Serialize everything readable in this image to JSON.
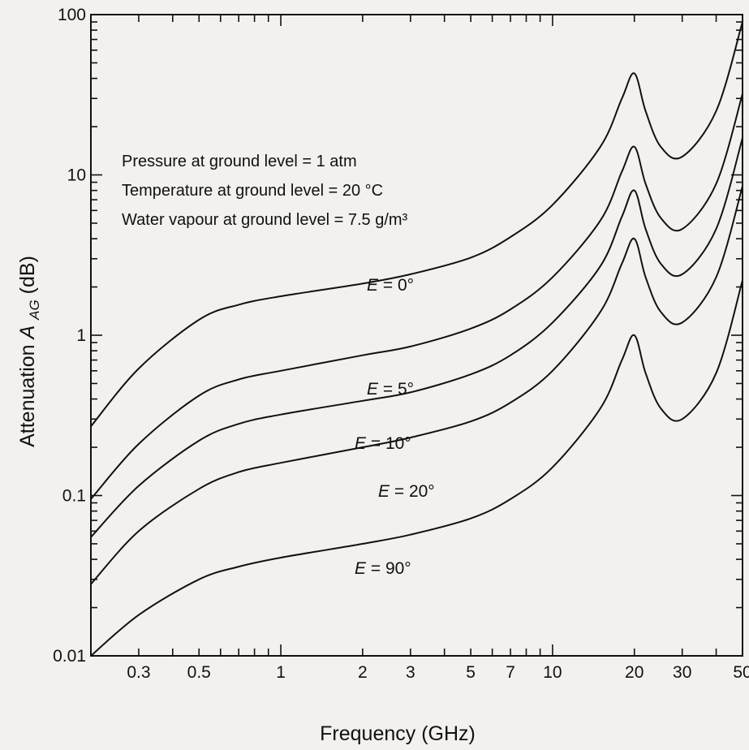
{
  "chart_data": {
    "type": "line",
    "title": "",
    "xlabel": "Frequency (GHz)",
    "ylabel": "Attenuation A_AG(dB)",
    "ylabel_main": "Attenuation ",
    "ylabel_symbol": "A",
    "ylabel_subscript": "AG",
    "ylabel_unit": "(dB)",
    "x_scale": "log",
    "y_scale": "log",
    "xlim": [
      0.2,
      50
    ],
    "ylim": [
      0.01,
      100
    ],
    "x_tick_labels": [
      {
        "value": 0.3,
        "label": "0.3"
      },
      {
        "value": 0.5,
        "label": "0.5"
      },
      {
        "value": 1,
        "label": "1"
      },
      {
        "value": 2,
        "label": "2"
      },
      {
        "value": 3,
        "label": "3"
      },
      {
        "value": 5,
        "label": "5"
      },
      {
        "value": 7,
        "label": "7"
      },
      {
        "value": 10,
        "label": "10"
      },
      {
        "value": 20,
        "label": "20"
      },
      {
        "value": 30,
        "label": "30"
      },
      {
        "value": 50,
        "label": "50"
      }
    ],
    "y_tick_labels": [
      {
        "value": 0.01,
        "label": "0.01"
      },
      {
        "value": 0.1,
        "label": "0.1"
      },
      {
        "value": 1,
        "label": "1"
      },
      {
        "value": 10,
        "label": "10"
      },
      {
        "value": 100,
        "label": "100"
      }
    ],
    "grid": false,
    "annotations": [
      "Pressure at ground level = 1 atm",
      "Temperature at ground level = 20 °C",
      "Water vapour at ground level = 7.5 g/m³"
    ],
    "series": [
      {
        "name": "E = 0°",
        "label_var": "E",
        "label_rest": " = 0°",
        "x": [
          0.2,
          0.3,
          0.5,
          0.7,
          1,
          2,
          3,
          5,
          7,
          10,
          15,
          18,
          20,
          22,
          25,
          30,
          40,
          50
        ],
        "y": [
          0.27,
          0.62,
          1.25,
          1.55,
          1.75,
          2.1,
          2.4,
          3.05,
          4.1,
          6.5,
          15,
          30,
          43,
          25,
          15,
          13,
          25,
          90
        ]
      },
      {
        "name": "E = 5°",
        "label_var": "E",
        "label_rest": " = 5°",
        "x": [
          0.2,
          0.3,
          0.5,
          0.7,
          1,
          2,
          3,
          5,
          7,
          10,
          15,
          18,
          20,
          22,
          25,
          30,
          40,
          50
        ],
        "y": [
          0.095,
          0.21,
          0.42,
          0.53,
          0.6,
          0.75,
          0.85,
          1.1,
          1.45,
          2.3,
          5.2,
          10.5,
          15,
          8.8,
          5.4,
          4.6,
          8.8,
          32
        ]
      },
      {
        "name": "E = 10°",
        "label_var": "E",
        "label_rest": " = 10°",
        "x": [
          0.2,
          0.3,
          0.5,
          0.7,
          1,
          2,
          3,
          5,
          7,
          10,
          15,
          18,
          20,
          22,
          25,
          30,
          40,
          50
        ],
        "y": [
          0.055,
          0.115,
          0.22,
          0.28,
          0.32,
          0.39,
          0.44,
          0.57,
          0.75,
          1.2,
          2.7,
          5.5,
          8,
          4.6,
          2.8,
          2.4,
          4.6,
          17
        ]
      },
      {
        "name": "E = 20°",
        "label_var": "E",
        "label_rest": " = 20°",
        "x": [
          0.2,
          0.3,
          0.5,
          0.7,
          1,
          2,
          3,
          5,
          7,
          10,
          15,
          18,
          20,
          22,
          25,
          30,
          40,
          50
        ],
        "y": [
          0.028,
          0.06,
          0.11,
          0.14,
          0.16,
          0.2,
          0.23,
          0.29,
          0.38,
          0.6,
          1.4,
          2.8,
          4,
          2.3,
          1.4,
          1.2,
          2.3,
          8.5
        ]
      },
      {
        "name": "E = 90°",
        "label_var": "E",
        "label_rest": " = 90°",
        "x": [
          0.2,
          0.3,
          0.5,
          0.7,
          1,
          2,
          3,
          5,
          7,
          10,
          15,
          18,
          20,
          22,
          25,
          30,
          40,
          50
        ],
        "y": [
          0.01,
          0.018,
          0.03,
          0.036,
          0.041,
          0.05,
          0.057,
          0.072,
          0.095,
          0.15,
          0.35,
          0.7,
          1.0,
          0.58,
          0.35,
          0.3,
          0.58,
          2.2
        ]
      }
    ]
  }
}
